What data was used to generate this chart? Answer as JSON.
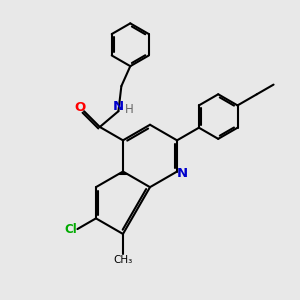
{
  "bg_color": "#e8e8e8",
  "bond_color": "#000000",
  "bond_width": 1.5,
  "atom_colors": {
    "O": "#ff0000",
    "N": "#0000cc",
    "Cl": "#00aa00",
    "H": "#666666",
    "C": "#000000"
  },
  "font_size": 8.5,
  "fig_size": [
    3.0,
    3.0
  ],
  "dpi": 100
}
